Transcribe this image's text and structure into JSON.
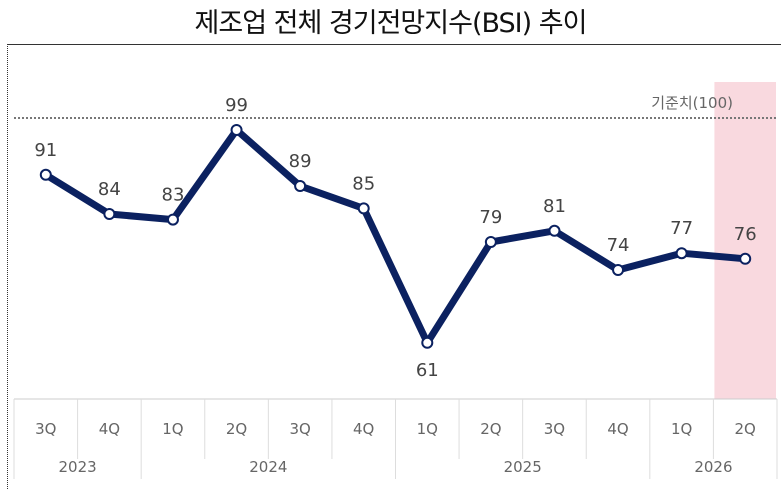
{
  "title": "제조업 전체 경기전망지수(BSI) 추이",
  "chart_data": {
    "type": "line",
    "categories": [
      "3Q",
      "4Q",
      "1Q",
      "2Q",
      "3Q",
      "4Q",
      "1Q",
      "2Q",
      "3Q",
      "4Q",
      "1Q",
      "2Q"
    ],
    "years": [
      {
        "label": "2023",
        "span": 2
      },
      {
        "label": "2024",
        "span": 4
      },
      {
        "label": "2025",
        "span": 4
      },
      {
        "label": "2026",
        "span": 2
      }
    ],
    "values": [
      91,
      84,
      83,
      99,
      89,
      85,
      61,
      79,
      81,
      74,
      77,
      76
    ],
    "reference": {
      "label": "기준치(100)",
      "value": 100
    },
    "highlight_index": 11,
    "colors": {
      "line": "#0b2160",
      "highlight": "#f9d9df",
      "reference": "#777777"
    },
    "grid": false
  }
}
